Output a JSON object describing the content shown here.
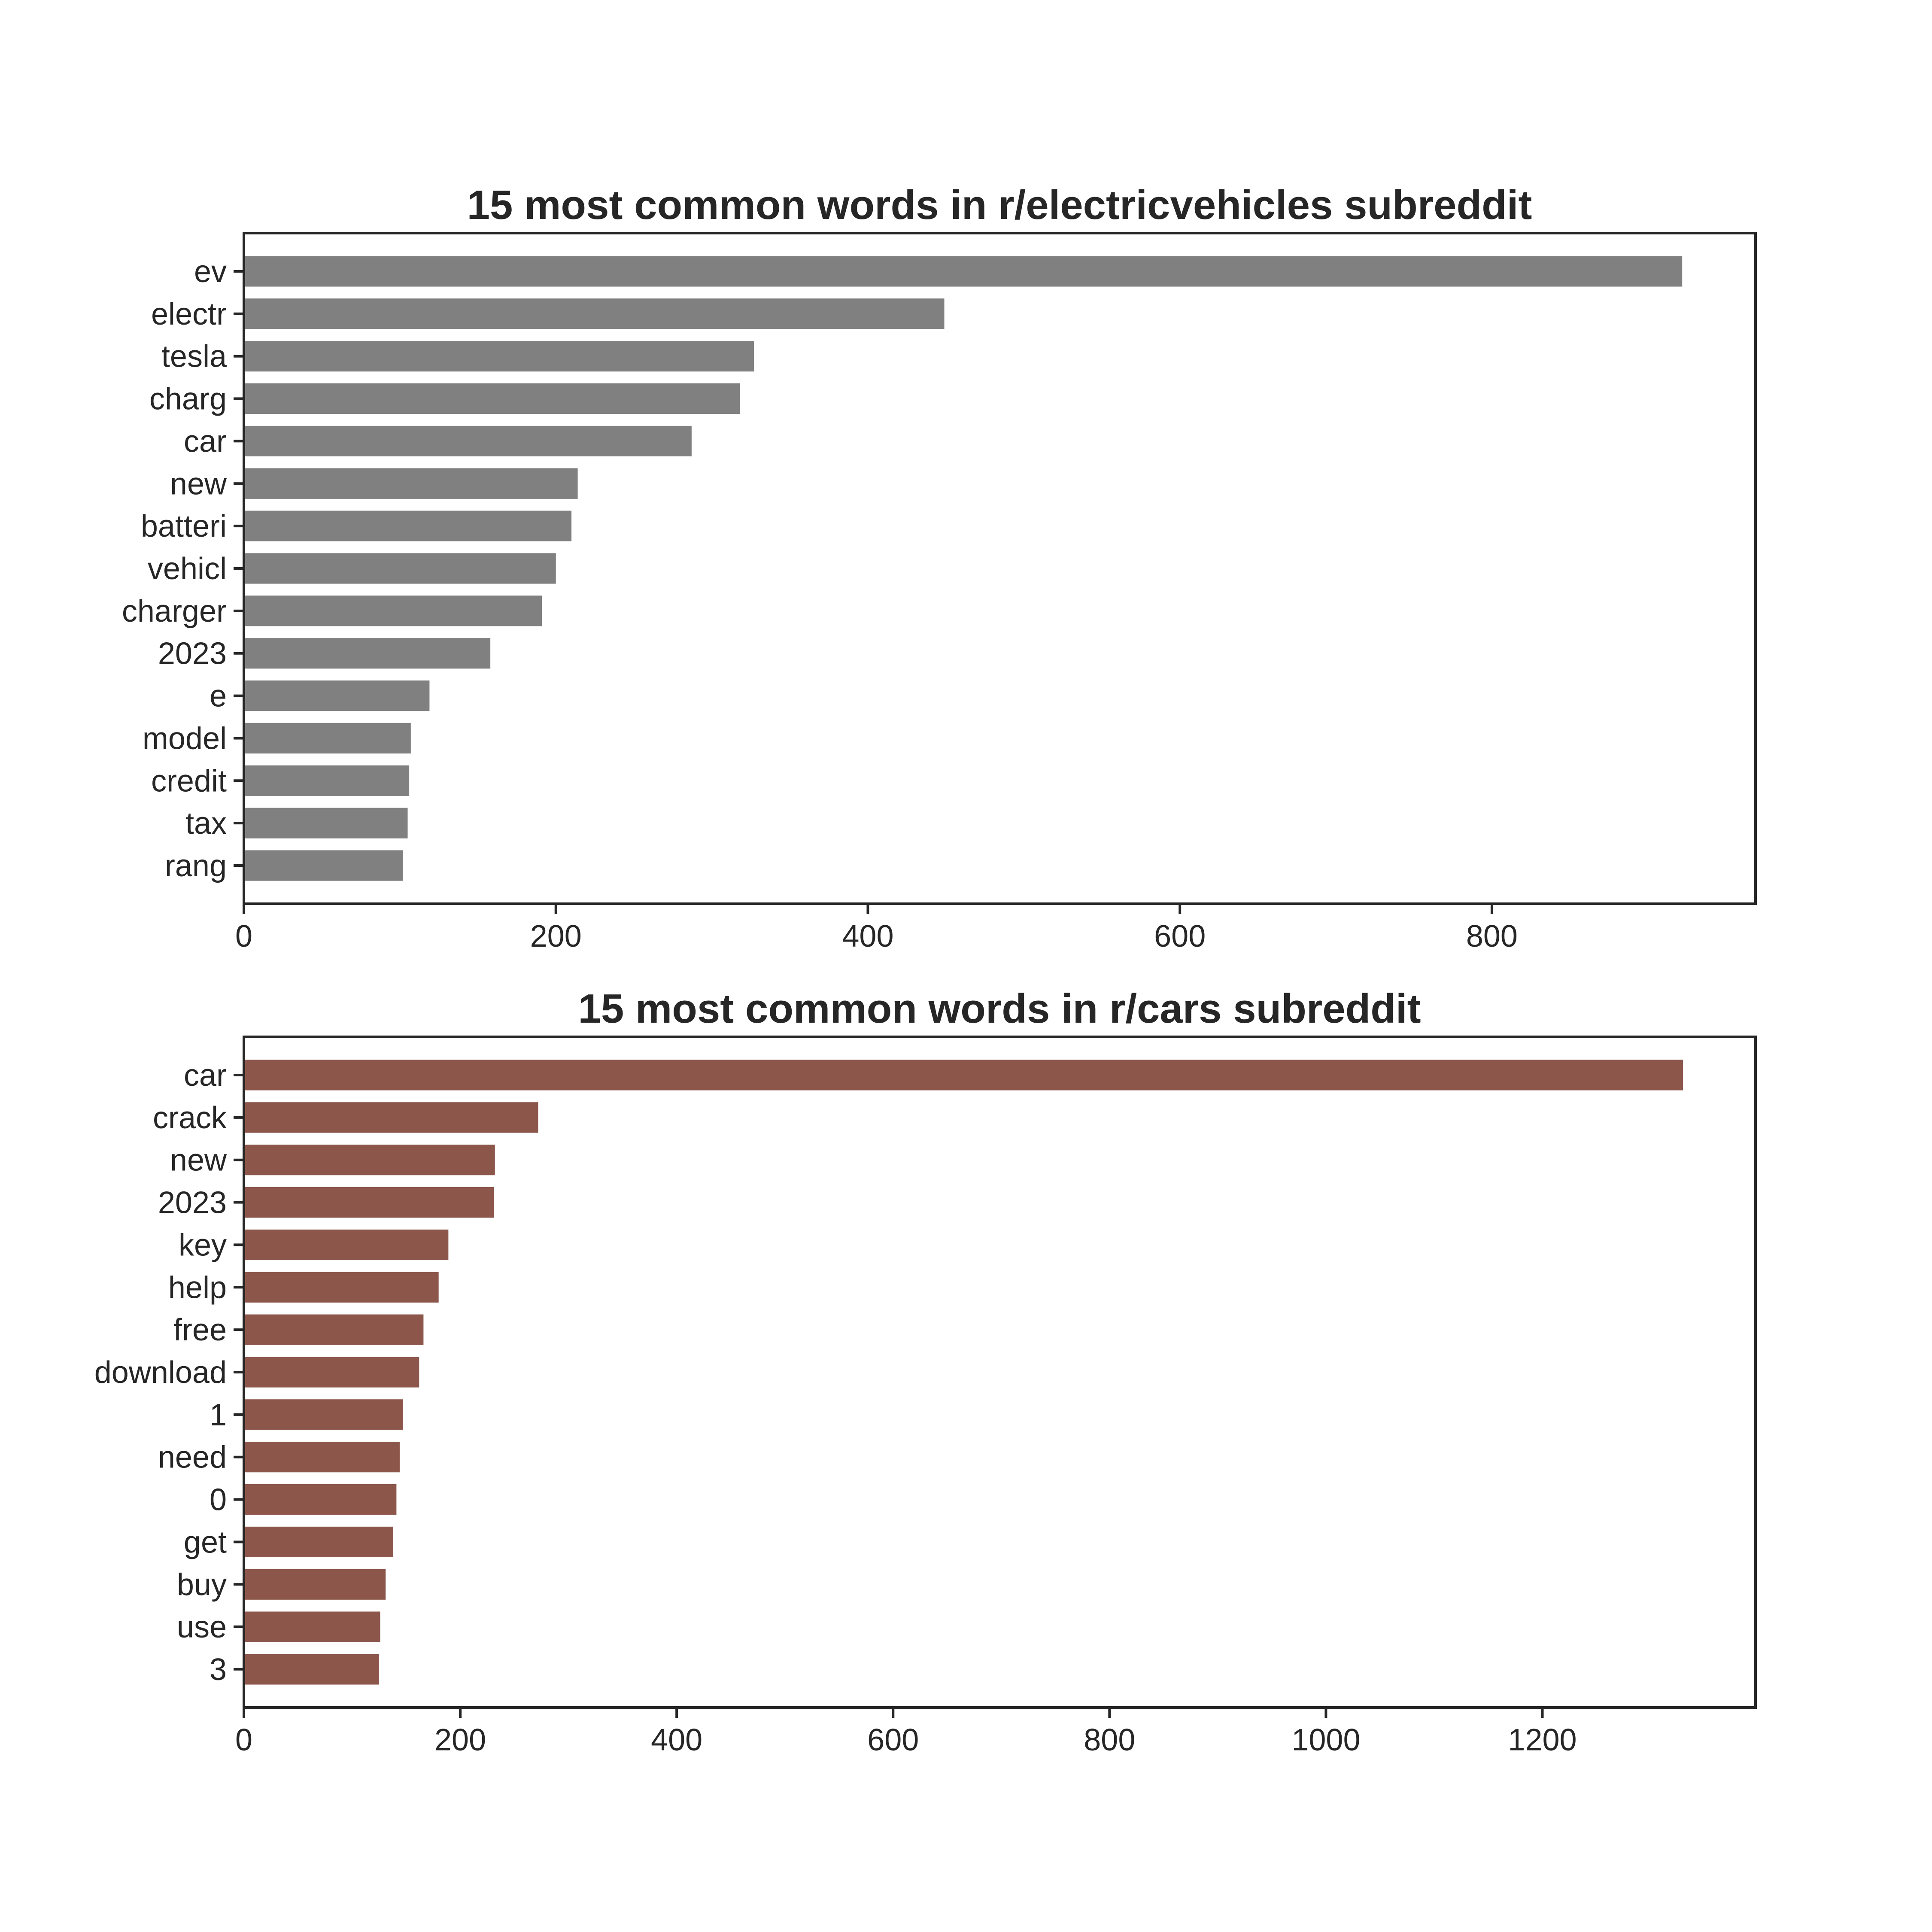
{
  "chart_data": [
    {
      "type": "bar",
      "orientation": "horizontal",
      "title": "15 most common words in r/electricvehicles subreddit",
      "xlabel": "",
      "ylabel": "",
      "categories": [
        "ev",
        "electr",
        "tesla",
        "charg",
        "car",
        "new",
        "batteri",
        "vehicl",
        "charger",
        "2023",
        "e",
        "model",
        "credit",
        "tax",
        "rang"
      ],
      "values": [
        922,
        449,
        327,
        318,
        287,
        214,
        210,
        200,
        191,
        158,
        119,
        107,
        106,
        105,
        102
      ],
      "xlim": [
        0,
        969
      ],
      "xticks": [
        0,
        200,
        400,
        600,
        800
      ],
      "xtick_labels": [
        "0",
        "200",
        "400",
        "600",
        "800"
      ],
      "bar_color": "#808080",
      "grid": false
    },
    {
      "type": "bar",
      "orientation": "horizontal",
      "title": "15 most common words in r/cars subreddit",
      "xlabel": "",
      "ylabel": "",
      "categories": [
        "car",
        "crack",
        "new",
        "2023",
        "key",
        "help",
        "free",
        "download",
        "1",
        "need",
        "0",
        "get",
        "buy",
        "use",
        "3"
      ],
      "values": [
        1330,
        272,
        232,
        231,
        189,
        180,
        166,
        162,
        147,
        144,
        141,
        138,
        131,
        126,
        125
      ],
      "xlim": [
        0,
        1397
      ],
      "xticks": [
        0,
        200,
        400,
        600,
        800,
        1000,
        1200
      ],
      "xtick_labels": [
        "0",
        "200",
        "400",
        "600",
        "800",
        "1000",
        "1200"
      ],
      "bar_color": "#8c564b",
      "grid": false
    }
  ]
}
